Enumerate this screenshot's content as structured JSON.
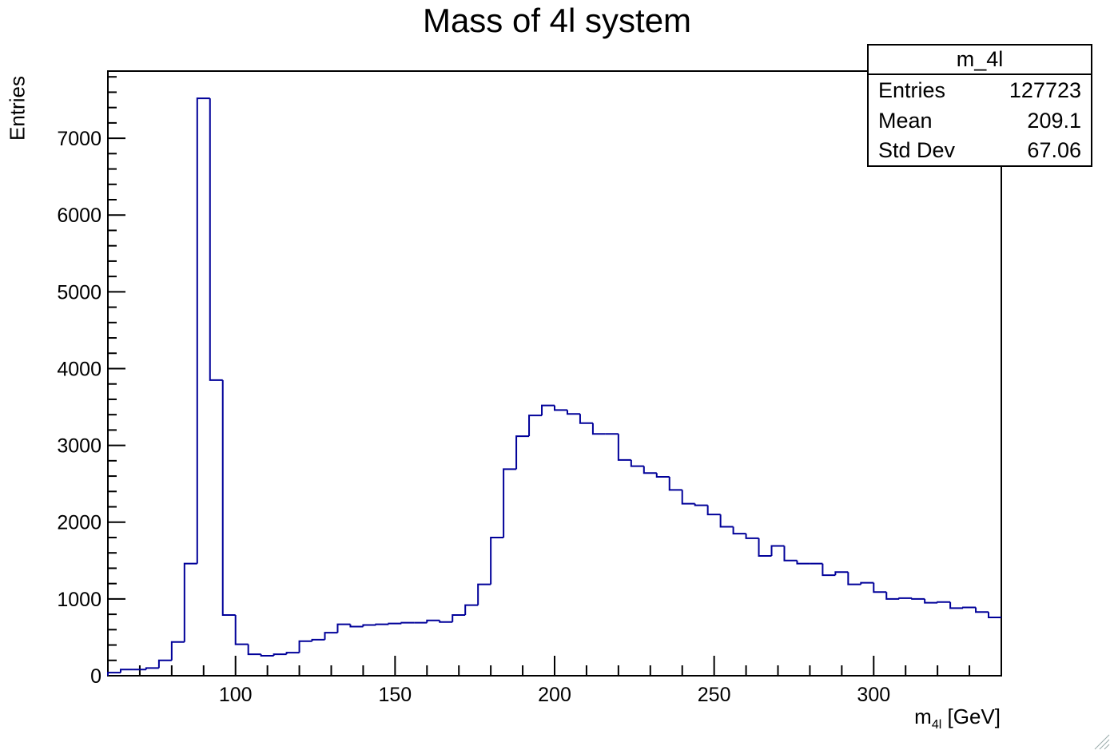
{
  "chart_data": {
    "type": "bar",
    "histogram_style": "step",
    "title": "Mass of 4l system",
    "xlabel": "m_4l [GeV]",
    "xlabel_main": "m",
    "xlabel_sub": "4l",
    "xlabel_unit": "[GeV]",
    "ylabel": "Entries",
    "xlim": [
      60,
      340
    ],
    "ylim": [
      0,
      7875
    ],
    "x_ticks": [
      100,
      150,
      200,
      250,
      300
    ],
    "y_ticks": [
      0,
      1000,
      2000,
      3000,
      4000,
      5000,
      6000,
      7000
    ],
    "bin_width": 4,
    "bin_low_edges": [
      60,
      64,
      68,
      72,
      76,
      80,
      84,
      88,
      92,
      96,
      100,
      104,
      108,
      112,
      116,
      120,
      124,
      128,
      132,
      136,
      140,
      144,
      148,
      152,
      156,
      160,
      164,
      168,
      172,
      176,
      180,
      184,
      188,
      192,
      196,
      200,
      204,
      208,
      212,
      216,
      220,
      224,
      228,
      232,
      236,
      240,
      244,
      248,
      252,
      256,
      260,
      264,
      268,
      272,
      276,
      280,
      284,
      288,
      292,
      296,
      300,
      304,
      308,
      312,
      316,
      320,
      324,
      328,
      332,
      336
    ],
    "values": [
      40,
      80,
      80,
      100,
      200,
      440,
      1460,
      7520,
      3850,
      790,
      410,
      280,
      260,
      280,
      300,
      450,
      470,
      560,
      670,
      640,
      660,
      670,
      680,
      690,
      690,
      720,
      700,
      790,
      920,
      1190,
      1800,
      2690,
      3120,
      3390,
      3520,
      3460,
      3410,
      3290,
      3150,
      3150,
      2810,
      2730,
      2640,
      2590,
      2420,
      2240,
      2220,
      2100,
      1940,
      1850,
      1790,
      1560,
      1690,
      1500,
      1460,
      1460,
      1310,
      1350,
      1190,
      1210,
      1090,
      1000,
      1010,
      1000,
      950,
      960,
      880,
      890,
      830,
      760
    ],
    "series": [
      {
        "values_ref": "values",
        "color": "#000099"
      }
    ],
    "grid": false,
    "stats_box": {
      "name": "m_4l",
      "entries_label": "Entries",
      "entries_value": "127723",
      "mean_label": "Mean",
      "mean_value": "209.1",
      "std_label": "Std Dev",
      "std_value": "67.06"
    }
  },
  "colors": {
    "line": "#000099",
    "axis": "#000000",
    "background": "#ffffff"
  },
  "icons": {
    "resize": "resize-grip-icon"
  }
}
